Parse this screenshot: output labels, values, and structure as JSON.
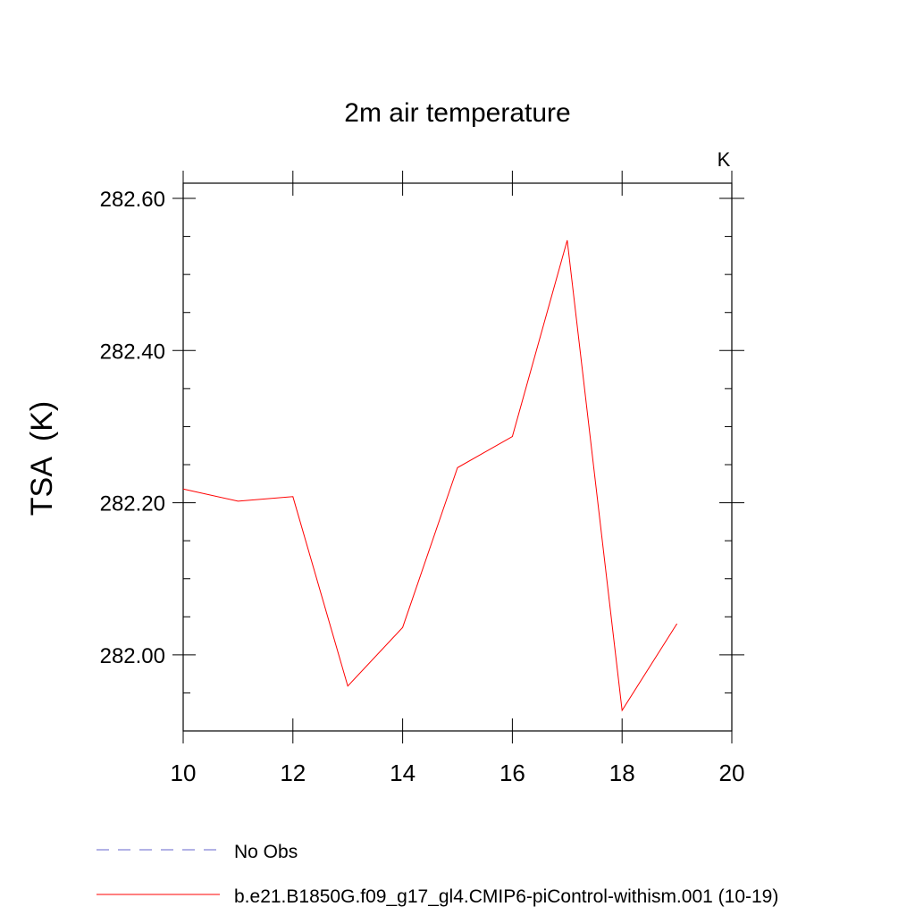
{
  "chart_data": {
    "type": "line",
    "title": "2m air temperature",
    "units_label": "K",
    "ylabel": "TSA  (K)",
    "xlabel": "",
    "xlim": [
      10,
      20
    ],
    "ylim": [
      281.9,
      282.62
    ],
    "x_ticks": [
      10,
      12,
      14,
      16,
      18,
      20
    ],
    "x_tick_labels": [
      "10",
      "12",
      "14",
      "16",
      "18",
      "20"
    ],
    "x_minor_ticks": [],
    "y_ticks": [
      282.0,
      282.2,
      282.4,
      282.6
    ],
    "y_tick_labels": [
      "282.00",
      "282.20",
      "282.40",
      "282.60"
    ],
    "y_minor_ticks": [
      281.9,
      281.95,
      282.05,
      282.1,
      282.15,
      282.25,
      282.3,
      282.35,
      282.45,
      282.5,
      282.55
    ],
    "grid": false,
    "legend_position": "bottom",
    "series": [
      {
        "name": "b.e21.B1850G.f09_g17_gl4.CMIP6-piControl-withism.001 (10-19)",
        "color": "#ff0000",
        "style": "solid",
        "x": [
          10,
          11,
          12,
          13,
          14,
          15,
          16,
          17,
          18,
          19
        ],
        "y": [
          282.218,
          282.202,
          282.208,
          281.959,
          282.036,
          282.246,
          282.287,
          282.545,
          281.927,
          282.041
        ]
      }
    ],
    "legend": [
      {
        "label": "No Obs",
        "color": "#6666cc",
        "style": "dashed"
      },
      {
        "label": "b.e21.B1850G.f09_g17_gl4.CMIP6-piControl-withism.001 (10-19)",
        "color": "#ff0000",
        "style": "solid"
      }
    ]
  }
}
